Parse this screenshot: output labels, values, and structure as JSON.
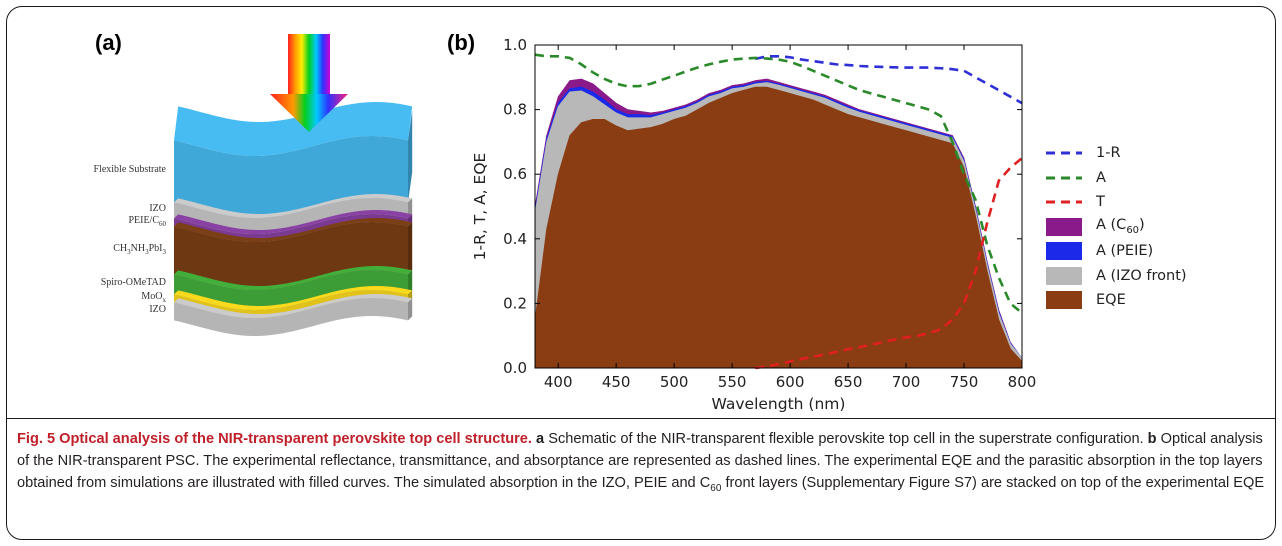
{
  "figure": {
    "panel_a_label": "(a)",
    "panel_b_label": "(b)"
  },
  "schematic": {
    "arrow_label": "rainbow-arrow",
    "layers": [
      {
        "key": "substrate",
        "label": "Flexible Substrate",
        "color": "#3fa8d8"
      },
      {
        "key": "izo_top",
        "label": "IZO",
        "color": "#b5b5b5"
      },
      {
        "key": "peie",
        "label": "PEIE/C",
        "sub": "60",
        "color": "#7a3a92"
      },
      {
        "key": "perovskite",
        "label": "CH",
        "sub1": "3",
        "mid": "NH",
        "sub2": "3",
        "mid2": "PbI",
        "sub3": "3",
        "color": "#6d3812"
      },
      {
        "key": "spiro",
        "label": "Spiro-OMeTAD",
        "color": "#3c9c35"
      },
      {
        "key": "moo",
        "label": "MoO",
        "sub": "x",
        "color": "#e0c21a"
      },
      {
        "key": "izo_bottom",
        "label": "IZO",
        "color": "#b5b5b5"
      }
    ]
  },
  "chart_data": {
    "type": "area",
    "xlabel": "Wavelength (nm)",
    "ylabel": "1-R, T, A, EQE",
    "xlim": [
      380,
      800
    ],
    "ylim": [
      0.0,
      1.0
    ],
    "xticks": [
      400,
      450,
      500,
      550,
      600,
      650,
      700,
      750,
      800
    ],
    "yticks": [
      0.0,
      0.2,
      0.4,
      0.6,
      0.8,
      1.0
    ],
    "xtick_labels": [
      "400",
      "450",
      "500",
      "550",
      "600",
      "650",
      "700",
      "750",
      "800"
    ],
    "ytick_labels": [
      "0.0",
      "0.2",
      "0.4",
      "0.6",
      "0.8",
      "1.0"
    ],
    "grid": false,
    "legend_position": "right",
    "x": [
      380,
      390,
      400,
      410,
      420,
      430,
      440,
      450,
      460,
      470,
      480,
      490,
      500,
      510,
      520,
      530,
      540,
      550,
      560,
      570,
      580,
      590,
      600,
      610,
      620,
      630,
      640,
      650,
      660,
      670,
      680,
      690,
      700,
      710,
      720,
      730,
      740,
      750,
      760,
      770,
      780,
      790,
      800
    ],
    "series": [
      {
        "name": "1-R",
        "kind": "dashed",
        "color": "#2f2fd8",
        "values": [
          null,
          null,
          null,
          null,
          null,
          null,
          null,
          null,
          null,
          null,
          null,
          null,
          null,
          null,
          null,
          null,
          null,
          null,
          null,
          0.957,
          0.965,
          0.965,
          0.962,
          0.955,
          0.95,
          0.945,
          0.94,
          0.938,
          0.935,
          0.933,
          0.932,
          0.931,
          0.93,
          0.93,
          0.93,
          0.928,
          0.925,
          0.92,
          0.9,
          0.88,
          0.86,
          0.84,
          0.82
        ]
      },
      {
        "name": "A",
        "kind": "dashed",
        "color": "#2a8a2a",
        "values": [
          0.97,
          0.965,
          0.965,
          0.96,
          0.94,
          0.915,
          0.895,
          0.88,
          0.872,
          0.873,
          0.88,
          0.893,
          0.905,
          0.918,
          0.93,
          0.94,
          0.948,
          0.955,
          0.958,
          0.96,
          0.958,
          0.955,
          0.948,
          0.935,
          0.92,
          0.905,
          0.89,
          0.875,
          0.86,
          0.85,
          0.84,
          0.83,
          0.82,
          0.81,
          0.8,
          0.78,
          0.7,
          0.6,
          0.52,
          0.38,
          0.28,
          0.2,
          0.17
        ]
      },
      {
        "name": "T",
        "kind": "dashed",
        "color": "#e02020",
        "values": [
          null,
          null,
          null,
          null,
          null,
          null,
          null,
          null,
          null,
          null,
          null,
          null,
          null,
          null,
          null,
          null,
          null,
          null,
          null,
          0.0,
          0.005,
          0.012,
          0.02,
          0.028,
          0.035,
          0.042,
          0.05,
          0.058,
          0.065,
          0.072,
          0.08,
          0.088,
          0.095,
          0.1,
          0.108,
          0.12,
          0.15,
          0.2,
          0.3,
          0.45,
          0.58,
          0.62,
          0.65
        ]
      },
      {
        "name": "A (C60)",
        "kind": "fill",
        "color": "#8a1a8a",
        "values": [
          0.5,
          0.72,
          0.84,
          0.89,
          0.895,
          0.88,
          0.85,
          0.82,
          0.8,
          0.795,
          0.79,
          0.795,
          0.805,
          0.815,
          0.83,
          0.85,
          0.86,
          0.875,
          0.88,
          0.89,
          0.895,
          0.885,
          0.875,
          0.865,
          0.855,
          0.845,
          0.83,
          0.815,
          0.8,
          0.79,
          0.78,
          0.77,
          0.76,
          0.75,
          0.74,
          0.73,
          0.72,
          0.65,
          0.5,
          0.33,
          0.18,
          0.08,
          0.03
        ]
      },
      {
        "name": "A (PEIE)",
        "kind": "fill",
        "color": "#1a2ae8",
        "values": [
          0.49,
          0.71,
          0.82,
          0.865,
          0.87,
          0.855,
          0.83,
          0.8,
          0.785,
          0.785,
          0.782,
          0.79,
          0.8,
          0.81,
          0.825,
          0.845,
          0.855,
          0.87,
          0.875,
          0.885,
          0.888,
          0.88,
          0.87,
          0.86,
          0.85,
          0.84,
          0.825,
          0.81,
          0.797,
          0.787,
          0.777,
          0.767,
          0.757,
          0.747,
          0.737,
          0.727,
          0.717,
          0.645,
          0.495,
          0.325,
          0.175,
          0.078,
          0.03
        ]
      },
      {
        "name": "A (IZO front)",
        "kind": "fill",
        "color": "#b8b8b8",
        "values": [
          0.48,
          0.7,
          0.81,
          0.855,
          0.858,
          0.84,
          0.815,
          0.79,
          0.775,
          0.775,
          0.775,
          0.785,
          0.795,
          0.805,
          0.82,
          0.84,
          0.85,
          0.865,
          0.87,
          0.88,
          0.884,
          0.876,
          0.866,
          0.856,
          0.846,
          0.836,
          0.82,
          0.805,
          0.792,
          0.782,
          0.772,
          0.762,
          0.752,
          0.742,
          0.732,
          0.722,
          0.712,
          0.64,
          0.49,
          0.32,
          0.17,
          0.075,
          0.03
        ]
      },
      {
        "name": "EQE",
        "kind": "fill",
        "color": "#8a3c12",
        "values": [
          0.15,
          0.43,
          0.6,
          0.72,
          0.76,
          0.77,
          0.77,
          0.75,
          0.735,
          0.74,
          0.745,
          0.755,
          0.77,
          0.78,
          0.8,
          0.82,
          0.835,
          0.85,
          0.86,
          0.87,
          0.87,
          0.86,
          0.85,
          0.84,
          0.83,
          0.815,
          0.8,
          0.785,
          0.775,
          0.765,
          0.755,
          0.745,
          0.735,
          0.725,
          0.715,
          0.705,
          0.695,
          0.62,
          0.47,
          0.3,
          0.15,
          0.06,
          0.02
        ]
      }
    ]
  },
  "legend": [
    {
      "label": "1-R",
      "kind": "dashed",
      "color": "#2f2fd8"
    },
    {
      "label": "A",
      "kind": "dashed",
      "color": "#2a8a2a"
    },
    {
      "label": "T",
      "kind": "dashed",
      "color": "#e02020"
    },
    {
      "label": "A (C",
      "sub": "60",
      "tail": ")",
      "kind": "fill",
      "color": "#8a1a8a"
    },
    {
      "label": "A (PEIE)",
      "kind": "fill",
      "color": "#1a2ae8"
    },
    {
      "label": "A (IZO front)",
      "kind": "fill",
      "color": "#b8b8b8"
    },
    {
      "label": "EQE",
      "kind": "fill",
      "color": "#8a3c12"
    }
  ],
  "caption": {
    "title": "Fig. 5 Optical analysis of the NIR-transparent perovskite top cell structure.",
    "a_label": "a",
    "a_text": " Schematic of the NIR-transparent flexible perovskite top cell in the superstrate configuration. ",
    "b_label": "b",
    "b_text_1": " Optical analysis of the NIR-transparent PSC. The experimental reflectance, transmittance, and absorptance are represented as dashed lines. The experimental EQE and the parasitic absorption in the top layers obtained from simulations are illustrated with filled curves. The simulated absorption in the IZO, PEIE and C",
    "b_sub": "60",
    "b_text_2": " front layers (Supplementary Figure S7) are stacked on top of the experimental EQE"
  }
}
